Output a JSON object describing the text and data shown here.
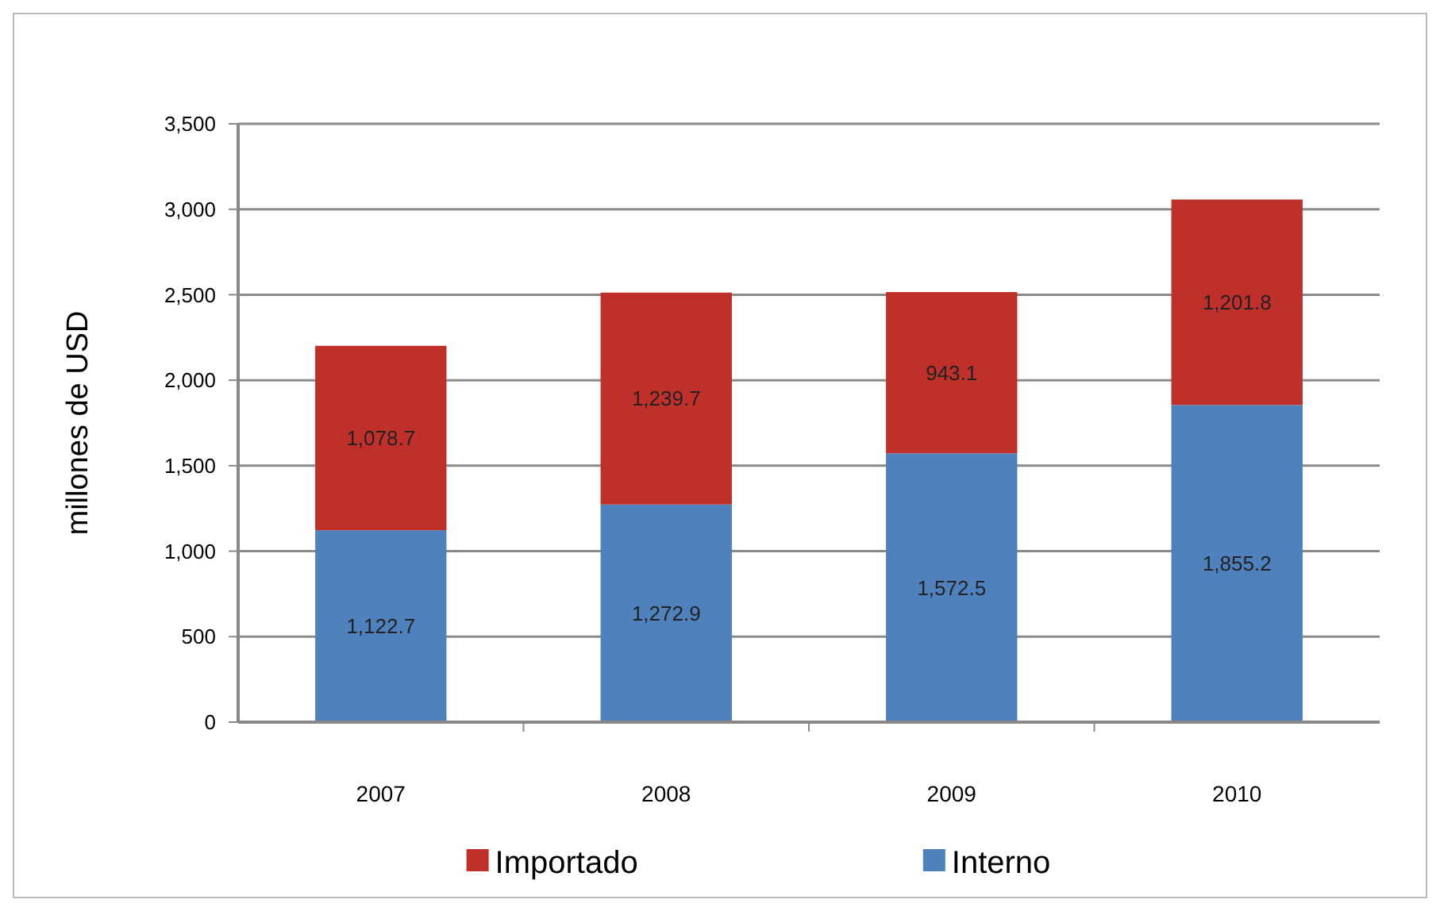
{
  "chart_data": {
    "type": "bar",
    "stacked": true,
    "ylabel": "millones de USD",
    "categories": [
      "2007",
      "2008",
      "2009",
      "2010"
    ],
    "series": [
      {
        "name": "Interno",
        "color": "#4f81bd",
        "values": [
          1122.7,
          1272.9,
          1572.5,
          1855.2
        ],
        "value_labels": [
          "1,122.7",
          "1,272.9",
          "1,572.5",
          "1,855.2"
        ]
      },
      {
        "name": "Importado",
        "color": "#c0302a",
        "values": [
          1078.7,
          1239.7,
          943.1,
          1201.8
        ],
        "value_labels": [
          "1,078.7",
          "1,239.7",
          "943.1",
          "1,201.8"
        ]
      }
    ],
    "ylim": [
      0,
      3500
    ],
    "yticks": [
      {
        "value": 0,
        "label": "0"
      },
      {
        "value": 500,
        "label": "500"
      },
      {
        "value": 1000,
        "label": "1,000"
      },
      {
        "value": 1500,
        "label": "1,500"
      },
      {
        "value": 2000,
        "label": "2,000"
      },
      {
        "value": 2500,
        "label": "2,500"
      },
      {
        "value": 3000,
        "label": "3,000"
      },
      {
        "value": 3500,
        "label": "3,500"
      }
    ],
    "grid": "y",
    "legend": "bottom"
  }
}
